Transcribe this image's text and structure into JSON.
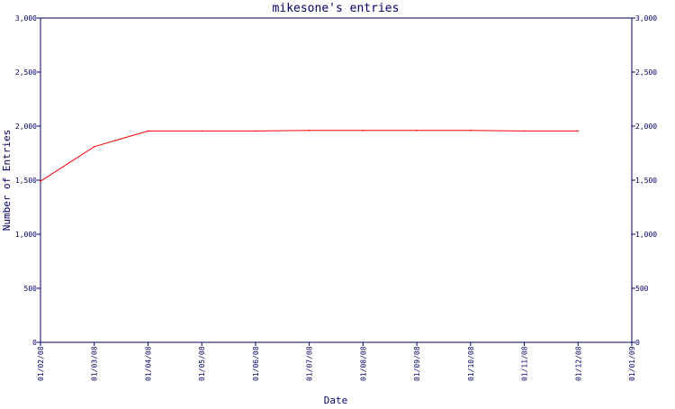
{
  "chart_data": {
    "type": "line",
    "title": "mikesone's entries",
    "xlabel": "Date",
    "ylabel": "Number of Entries",
    "x": [
      "01/02/08",
      "01/03/08",
      "01/04/08",
      "01/05/08",
      "01/06/08",
      "01/07/08",
      "01/08/08",
      "01/09/08",
      "01/10/08",
      "01/11/08",
      "01/12/08"
    ],
    "series": [
      {
        "values": [
          1490,
          1810,
          1955,
          1955,
          1955,
          1960,
          1960,
          1960,
          1960,
          1955,
          1955
        ]
      }
    ],
    "x_ticks": [
      "01/02/08",
      "01/03/08",
      "01/04/08",
      "01/05/08",
      "01/06/08",
      "01/07/08",
      "01/08/08",
      "01/09/08",
      "01/10/08",
      "01/11/08",
      "01/12/08",
      "01/01/09"
    ],
    "y_ticks": [
      0,
      500,
      1000,
      1500,
      2000,
      2500,
      3000
    ],
    "y_tick_labels": [
      "0",
      "500",
      "1,000",
      "1,500",
      "2,000",
      "2,500",
      "3,000"
    ],
    "ylim": [
      0,
      3000
    ],
    "grid": false,
    "legend": "none",
    "colors": {
      "axis": "#000066",
      "line": "#ff0000",
      "background": "#ffffff"
    }
  }
}
